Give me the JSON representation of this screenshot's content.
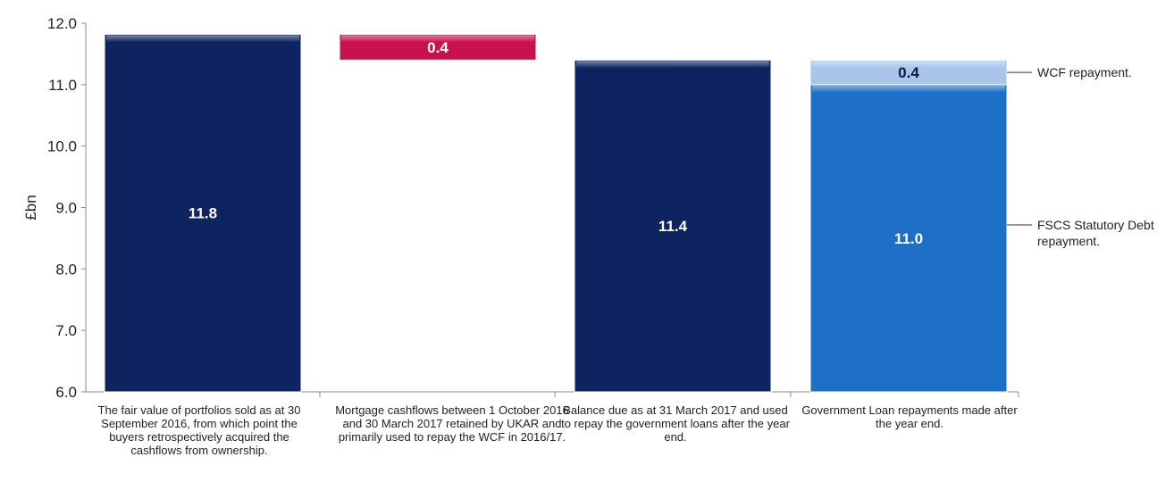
{
  "chart_data": {
    "type": "bar",
    "ylabel": "£bn",
    "ylim": [
      6.0,
      12.0
    ],
    "yticks": [
      "6.0",
      "7.0",
      "8.0",
      "9.0",
      "10.0",
      "11.0",
      "12.0"
    ],
    "grid": false,
    "categories": [
      "The fair value of portfolios sold as at 30 September 2016, from which point the buyers retrospectively acquired the cashflows from ownership.",
      "Mortgage cashflows between 1 October 2016 and 30 March 2017 retained by UKAR and primarily used to repay the WCF in 2016/17.",
      "Balance due as at 31 March 2017 and used to repay the government loans after the year end.",
      "Government Loan repayments made after the year end."
    ],
    "bars": [
      {
        "category_index": 0,
        "bottom": 6.0,
        "top": 11.82,
        "label": "11.8",
        "color": "#0d2460"
      },
      {
        "category_index": 1,
        "bottom": 11.4,
        "top": 11.82,
        "label": "0.4",
        "color": "#c8124e"
      },
      {
        "category_index": 2,
        "bottom": 6.0,
        "top": 11.4,
        "label": "11.4",
        "color": "#0d2460"
      },
      {
        "category_index": 3,
        "bottom": 6.0,
        "top": 11.0,
        "label": "11.0",
        "color": "#1d6fc8"
      },
      {
        "category_index": 3,
        "bottom": 11.0,
        "top": 11.4,
        "label": "0.4",
        "color": "#a9c6ea"
      }
    ],
    "annotations": [
      {
        "text": [
          "WCF repayment."
        ],
        "bar_index": 4
      },
      {
        "text": [
          "FSCS Statutory Debt",
          "repayment."
        ],
        "bar_index": 3
      }
    ]
  }
}
